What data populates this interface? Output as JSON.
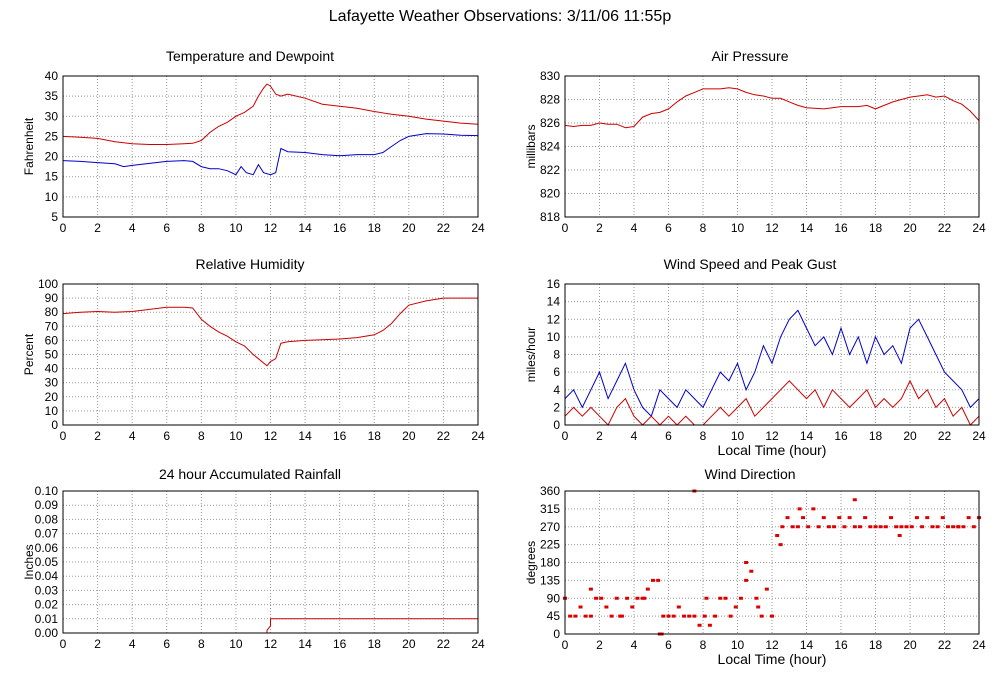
{
  "title": "Lafayette Weather Observations: 3/11/06 11:55p",
  "chart_data": [
    {
      "id": "temp",
      "type": "line",
      "title": "Temperature and Dewpoint",
      "xlabel": "",
      "ylabel": "Fahrenheit",
      "xlim": [
        0,
        24
      ],
      "ylim": [
        5,
        40
      ],
      "xticks": [
        0,
        2,
        4,
        6,
        8,
        10,
        12,
        14,
        16,
        18,
        20,
        22,
        24
      ],
      "yticks": [
        5,
        10,
        15,
        20,
        25,
        30,
        35,
        40
      ],
      "grid": true,
      "series": [
        {
          "color": "#cc0000",
          "x": [
            0,
            1,
            2,
            3,
            4,
            5,
            6,
            7,
            7.5,
            8,
            8.5,
            9,
            9.5,
            10,
            10.5,
            11,
            11.3,
            11.6,
            11.8,
            12,
            12.3,
            12.6,
            13,
            14,
            15,
            16,
            17,
            18,
            19,
            20,
            21,
            22,
            23,
            24
          ],
          "y": [
            25,
            24.8,
            24.5,
            23.7,
            23.2,
            23,
            23,
            23.2,
            23.3,
            24,
            26,
            27.5,
            28.5,
            30,
            31,
            32.5,
            35,
            37,
            38,
            37.5,
            35.5,
            35,
            35.5,
            34.5,
            33,
            32.5,
            32,
            31.2,
            30.5,
            30,
            29.3,
            28.8,
            28.3,
            28
          ]
        },
        {
          "color": "#0000cc",
          "x": [
            0,
            1,
            2,
            3,
            3.5,
            4,
            5,
            6,
            7,
            7.5,
            8,
            8.5,
            9,
            9.5,
            10,
            10.3,
            10.6,
            11,
            11.3,
            11.6,
            12,
            12.3,
            12.6,
            13,
            14,
            15,
            16,
            17,
            18,
            18.5,
            19,
            19.5,
            20,
            21,
            22,
            23,
            24
          ],
          "y": [
            19,
            18.8,
            18.5,
            18.2,
            17.5,
            17.8,
            18.3,
            18.8,
            19,
            18.8,
            17.5,
            17,
            17,
            16.5,
            15.5,
            17.5,
            16,
            15.5,
            18,
            16,
            15.5,
            16,
            22,
            21.2,
            21,
            20.5,
            20.2,
            20.5,
            20.5,
            21,
            22.5,
            24,
            25,
            25.7,
            25.6,
            25.3,
            25.2
          ]
        }
      ]
    },
    {
      "id": "pressure",
      "type": "line",
      "title": "Air Pressure",
      "xlabel": "",
      "ylabel": "millibars",
      "xlim": [
        0,
        24
      ],
      "ylim": [
        818,
        830
      ],
      "xticks": [
        0,
        2,
        4,
        6,
        8,
        10,
        12,
        14,
        16,
        18,
        20,
        22,
        24
      ],
      "yticks": [
        818,
        820,
        822,
        824,
        826,
        828,
        830
      ],
      "grid": true,
      "series": [
        {
          "color": "#cc0000",
          "x": [
            0,
            0.5,
            1,
            1.5,
            2,
            2.5,
            3,
            3.5,
            4,
            4.5,
            5,
            5.5,
            6,
            6.5,
            7,
            7.5,
            8,
            8.5,
            9,
            9.5,
            10,
            10.5,
            11,
            11.5,
            12,
            12.5,
            13,
            13.5,
            14,
            15,
            16,
            17,
            17.5,
            18,
            18.5,
            19,
            19.5,
            20,
            20.5,
            21,
            21.5,
            22,
            22.5,
            23,
            23.5,
            24
          ],
          "y": [
            825.8,
            825.7,
            825.8,
            825.8,
            826,
            825.9,
            825.9,
            825.6,
            825.7,
            826.5,
            826.8,
            826.9,
            827.2,
            827.8,
            828.3,
            828.6,
            828.9,
            828.9,
            828.9,
            829,
            828.9,
            828.6,
            828.4,
            828.3,
            828.1,
            828.1,
            827.8,
            827.5,
            827.3,
            827.2,
            827.4,
            827.4,
            827.5,
            827.2,
            827.5,
            827.8,
            828,
            828.2,
            828.3,
            828.4,
            828.2,
            828.3,
            827.9,
            827.6,
            827,
            826.2
          ]
        }
      ]
    },
    {
      "id": "humidity",
      "type": "line",
      "title": "Relative Humidity",
      "xlabel": "",
      "ylabel": "Percent",
      "xlim": [
        0,
        24
      ],
      "ylim": [
        0,
        100
      ],
      "xticks": [
        0,
        2,
        4,
        6,
        8,
        10,
        12,
        14,
        16,
        18,
        20,
        22,
        24
      ],
      "yticks": [
        0,
        10,
        20,
        30,
        40,
        50,
        60,
        70,
        80,
        90,
        100
      ],
      "grid": true,
      "series": [
        {
          "color": "#cc0000",
          "x": [
            0,
            1,
            2,
            3,
            4,
            5,
            6,
            7,
            7.5,
            8,
            8.5,
            9,
            9.5,
            10,
            10.5,
            11,
            11.3,
            11.6,
            11.8,
            12,
            12.3,
            12.6,
            13,
            14,
            15,
            16,
            17,
            18,
            18.5,
            19,
            19.5,
            20,
            21,
            22,
            23,
            24
          ],
          "y": [
            79,
            80,
            80.5,
            80,
            80.5,
            82,
            83.5,
            83.5,
            83,
            75,
            70,
            66,
            63,
            59,
            56,
            50,
            47,
            44,
            42,
            45,
            47,
            58,
            59,
            60,
            60.5,
            61,
            62,
            64,
            67,
            72,
            79,
            85,
            88,
            90,
            90,
            90
          ]
        }
      ]
    },
    {
      "id": "wind",
      "type": "line",
      "title": "Wind Speed and Peak Gust",
      "xlabel": "Local Time (hour)",
      "ylabel": "miles/hour",
      "xlim": [
        0,
        24
      ],
      "ylim": [
        0,
        16
      ],
      "xticks": [
        0,
        2,
        4,
        6,
        8,
        10,
        12,
        14,
        16,
        18,
        20,
        22,
        24
      ],
      "yticks": [
        0,
        2,
        4,
        6,
        8,
        10,
        12,
        14,
        16
      ],
      "grid": true,
      "series": [
        {
          "color": "#0000cc",
          "x": [
            0,
            0.5,
            1,
            1.5,
            2,
            2.5,
            3,
            3.5,
            4,
            4.5,
            5,
            5.5,
            6,
            6.5,
            7,
            7.5,
            8,
            8.5,
            9,
            9.5,
            10,
            10.5,
            11,
            11.5,
            12,
            12.5,
            13,
            13.5,
            14,
            14.5,
            15,
            15.5,
            16,
            16.5,
            17,
            17.5,
            18,
            18.5,
            19,
            19.5,
            20,
            20.5,
            21,
            21.5,
            22,
            22.5,
            23,
            23.5,
            24
          ],
          "y": [
            3,
            4,
            2,
            4,
            6,
            3,
            5,
            7,
            4,
            2,
            1,
            4,
            3,
            2,
            4,
            3,
            2,
            4,
            6,
            5,
            7,
            4,
            6,
            9,
            7,
            10,
            12,
            13,
            11,
            9,
            10,
            8,
            11,
            8,
            10,
            7,
            10,
            8,
            9,
            7,
            11,
            12,
            10,
            8,
            6,
            5,
            4,
            2,
            3
          ]
        },
        {
          "color": "#cc0000",
          "x": [
            0,
            0.5,
            1,
            1.5,
            2,
            2.5,
            3,
            3.5,
            4,
            4.5,
            5,
            5.5,
            6,
            6.5,
            7,
            7.5,
            8,
            8.5,
            9,
            9.5,
            10,
            10.5,
            11,
            11.5,
            12,
            12.5,
            13,
            13.5,
            14,
            14.5,
            15,
            15.5,
            16,
            16.5,
            17,
            17.5,
            18,
            18.5,
            19,
            19.5,
            20,
            20.5,
            21,
            21.5,
            22,
            22.5,
            23,
            23.5,
            24
          ],
          "y": [
            1,
            2,
            1,
            2,
            1,
            0,
            2,
            3,
            1,
            0,
            1,
            0,
            1,
            0,
            1,
            0,
            0,
            1,
            2,
            1,
            2,
            3,
            1,
            2,
            3,
            4,
            5,
            4,
            3,
            4,
            2,
            4,
            3,
            2,
            3,
            4,
            2,
            3,
            2,
            3,
            5,
            3,
            4,
            2,
            3,
            1,
            2,
            0,
            1
          ]
        }
      ]
    },
    {
      "id": "rain",
      "type": "line",
      "title": "24 hour Accumulated Rainfall",
      "xlabel": "",
      "ylabel": "Inches",
      "xlim": [
        0,
        24
      ],
      "ylim": [
        0,
        0.1
      ],
      "xticks": [
        0,
        2,
        4,
        6,
        8,
        10,
        12,
        14,
        16,
        18,
        20,
        22,
        24
      ],
      "yticks": [
        "0.00",
        "0.01",
        "0.02",
        "0.03",
        "0.04",
        "0.05",
        "0.06",
        "0.07",
        "0.08",
        "0.09",
        "0.10"
      ],
      "grid": true,
      "series": [
        {
          "color": "#cc0000",
          "x": [
            0,
            11.8,
            11.8,
            12,
            12,
            24
          ],
          "y": [
            0,
            0,
            0.002,
            0.005,
            0.01,
            0.01
          ]
        }
      ]
    },
    {
      "id": "direction",
      "type": "scatter",
      "title": "Wind Direction",
      "xlabel": "Local Time (hour)",
      "ylabel": "degrees",
      "xlim": [
        0,
        24
      ],
      "ylim": [
        0,
        360
      ],
      "xticks": [
        0,
        2,
        4,
        6,
        8,
        10,
        12,
        14,
        16,
        18,
        20,
        22,
        24
      ],
      "yticks": [
        0,
        45,
        90,
        135,
        180,
        225,
        270,
        315,
        360
      ],
      "grid": true,
      "series": [
        {
          "color": "#dd0000",
          "x": [
            0,
            0.3,
            0.6,
            0.9,
            1.2,
            1.5,
            1.8,
            2.1,
            2.4,
            2.7,
            3.0,
            3.3,
            3.6,
            3.9,
            4.2,
            4.5,
            4.8,
            5.1,
            5.4,
            5.7,
            6.0,
            6.3,
            6.6,
            6.9,
            7.2,
            7.5,
            7.8,
            8.1,
            8.4,
            8.7,
            9.0,
            9.3,
            9.6,
            9.9,
            10.2,
            10.5,
            10.8,
            11.1,
            11.4,
            11.7,
            12.0,
            12.3,
            12.6,
            12.9,
            13.2,
            13.5,
            13.8,
            14.1,
            14.4,
            14.7,
            15.0,
            15.3,
            15.6,
            15.9,
            16.2,
            16.5,
            16.8,
            17.1,
            17.4,
            17.7,
            18.0,
            18.3,
            18.6,
            18.9,
            19.2,
            19.5,
            19.8,
            20.1,
            20.4,
            20.7,
            21.0,
            21.3,
            21.6,
            21.9,
            22.2,
            22.5,
            22.8,
            23.1,
            23.4,
            23.7,
            24.0,
            1.5,
            3.2,
            4.6,
            5.6,
            7.5,
            5.5,
            8.2,
            10.5,
            11.2,
            12.5,
            13.6,
            16.8,
            19.4,
            22.8
          ],
          "y": [
            90,
            45,
            45,
            68,
            45,
            45,
            90,
            90,
            68,
            45,
            90,
            45,
            90,
            68,
            90,
            90,
            113,
            135,
            135,
            45,
            45,
            45,
            68,
            45,
            45,
            45,
            22,
            45,
            22,
            45,
            90,
            90,
            45,
            68,
            90,
            135,
            158,
            90,
            45,
            113,
            45,
            248,
            270,
            293,
            270,
            270,
            293,
            270,
            315,
            270,
            293,
            270,
            270,
            293,
            270,
            293,
            270,
            270,
            293,
            270,
            270,
            270,
            270,
            293,
            270,
            270,
            270,
            270,
            293,
            270,
            293,
            270,
            270,
            293,
            270,
            270,
            270,
            270,
            293,
            270,
            293,
            113,
            45,
            90,
            0,
            360,
            0,
            90,
            180,
            68,
            225,
            315,
            338,
            248,
            270
          ]
        }
      ]
    }
  ]
}
